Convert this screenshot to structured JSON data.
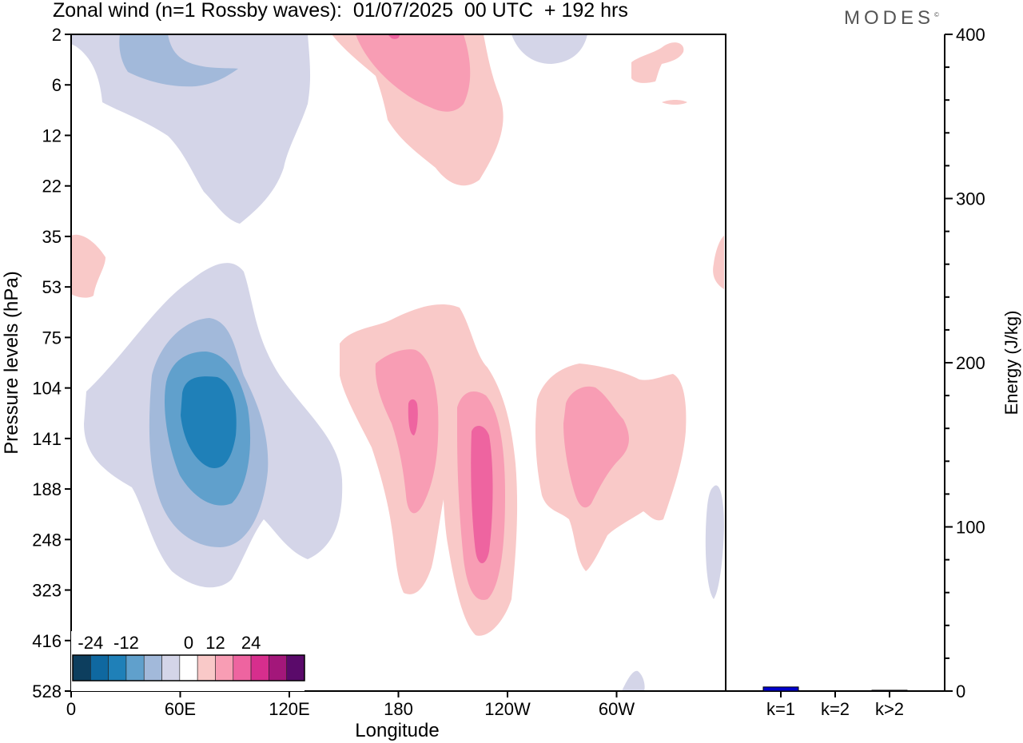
{
  "title": "Zonal wind (n=1 Rossby waves):  01/07/2025  00 UTC  + 192 hrs",
  "brand": "MODES",
  "brand_mark": "©",
  "colors": {
    "neg3": "#1f80b8",
    "neg2": "#60a0cc",
    "neg1": "#a2b9da",
    "neg0": "#d4d5e8",
    "pos0": "#f9c9c8",
    "pos1": "#f89db4",
    "pos2": "#ee64a0",
    "bar": "#0000cc",
    "axis": "#000000"
  },
  "chart_data": [
    {
      "type": "heatmap",
      "title": "Zonal wind (n=1 Rossby waves):  01/07/2025  00 UTC  + 192 hrs",
      "xlabel": "Longitude",
      "ylabel": "Pressure levels (hPa)",
      "x_ticks": [
        "0",
        "60E",
        "120E",
        "180",
        "120W",
        "60W"
      ],
      "y_ticks": [
        "2",
        "6",
        "12",
        "22",
        "35",
        "53",
        "75",
        "104",
        "141",
        "188",
        "248",
        "323",
        "416",
        "528"
      ],
      "colorbar": {
        "tick_labels": [
          "-24",
          "-12",
          "0",
          "12",
          "24"
        ],
        "levels": [
          -30,
          -24,
          -18,
          -12,
          -6,
          -3,
          3,
          6,
          12,
          18,
          24,
          30
        ],
        "colors": [
          "#0d3e5e",
          "#0f68a0",
          "#1f80b8",
          "#60a0cc",
          "#a2b9da",
          "#d4d5e8",
          "#ffffff",
          "#f9c9c8",
          "#f89db4",
          "#ee64a0",
          "#d72e8d",
          "#a3177a",
          "#5a0a6a"
        ]
      },
      "features": [
        {
          "sign": "negative",
          "center_lon": 75,
          "center_level": 125,
          "min": -20
        },
        {
          "sign": "positive",
          "center_lon": -150,
          "center_level": 175,
          "max": 14
        },
        {
          "sign": "positive",
          "center_lon": 180,
          "center_level": 120,
          "max": 14
        },
        {
          "sign": "positive",
          "center_lon": -80,
          "center_level": 130,
          "max": 10
        },
        {
          "sign": "negative",
          "center_lon": 40,
          "center_level": 8,
          "min": -8
        },
        {
          "sign": "positive",
          "center_lon": 180,
          "center_level": 4,
          "max": 10
        }
      ]
    },
    {
      "type": "bar",
      "categories": [
        "k=1",
        "k=2",
        "k>2"
      ],
      "values": [
        2.5,
        0.2,
        0.5
      ],
      "ylabel": "Energy (J/kg)",
      "ylim": [
        0,
        400
      ],
      "y_ticks": [
        "0",
        "100",
        "200",
        "300",
        "400"
      ]
    }
  ]
}
